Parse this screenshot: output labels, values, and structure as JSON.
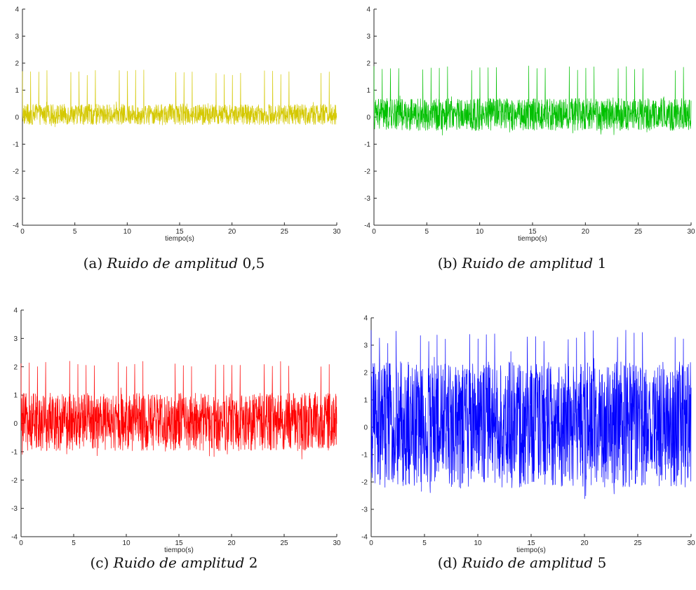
{
  "chart_data": [
    {
      "type": "line",
      "caption": {
        "tag": "(a)",
        "text": "Ruido de amplitud",
        "value": "0,5"
      },
      "xlabel": "tiempo(s)",
      "xlim": [
        0,
        30
      ],
      "ylim": [
        -4,
        4
      ],
      "xticks": [
        "0",
        "5",
        "10",
        "15",
        "20",
        "25",
        "30"
      ],
      "yticks": [
        "4",
        "3",
        "2",
        "1",
        "0",
        "-1",
        "-2",
        "-3",
        "-4"
      ],
      "color": "#d4c800",
      "series": [
        {
          "noise_amplitude": 0.5,
          "baseline": 0.1,
          "spike_peak": 1.65,
          "spike_period_s": 0.77,
          "noise_range": [
            -0.35,
            0.55
          ]
        }
      ]
    },
    {
      "type": "line",
      "caption": {
        "tag": "(b)",
        "text": "Ruido de amplitud",
        "value": "1"
      },
      "xlabel": "tiempo(s)",
      "xlim": [
        0,
        30
      ],
      "ylim": [
        -4,
        4
      ],
      "xticks": [
        "0",
        "5",
        "10",
        "15",
        "20",
        "25",
        "30"
      ],
      "yticks": [
        "4",
        "3",
        "2",
        "1",
        "0",
        "-1",
        "-2",
        "-3",
        "-4"
      ],
      "color": "#00c000",
      "series": [
        {
          "noise_amplitude": 1,
          "baseline": 0.1,
          "spike_peak": 1.8,
          "spike_period_s": 0.77,
          "noise_range": [
            -0.6,
            0.8
          ]
        }
      ]
    },
    {
      "type": "line",
      "caption": {
        "tag": "(c)",
        "text": "Ruido de amplitud",
        "value": "2"
      },
      "xlabel": "tiempo(s)",
      "xlim": [
        0,
        30
      ],
      "ylim": [
        -4,
        4
      ],
      "xticks": [
        "0",
        "5",
        "10",
        "15",
        "20",
        "25",
        "30"
      ],
      "yticks": [
        "4",
        "3",
        "2",
        "1",
        "0",
        "-1",
        "-2",
        "-3",
        "-4"
      ],
      "color": "#ff0000",
      "series": [
        {
          "noise_amplitude": 2,
          "baseline": 0.05,
          "spike_peak": 2.1,
          "spike_period_s": 0.77,
          "noise_range": [
            -1.2,
            1.2
          ]
        }
      ]
    },
    {
      "type": "line",
      "caption": {
        "tag": "(d)",
        "text": "Ruido de amplitud",
        "value": "5"
      },
      "xlabel": "tiempo(s)",
      "xlim": [
        0,
        30
      ],
      "ylim": [
        -4,
        4
      ],
      "xticks": [
        "0",
        "5",
        "10",
        "15",
        "20",
        "25",
        "30"
      ],
      "yticks": [
        "4",
        "3",
        "2",
        "1",
        "0",
        "-1",
        "-2",
        "-3",
        "-4"
      ],
      "color": "#0000ff",
      "series": [
        {
          "noise_amplitude": 5,
          "baseline": 0.1,
          "spike_peak": 3.3,
          "spike_period_s": 0.77,
          "noise_range": [
            -2.6,
            2.8
          ]
        }
      ]
    }
  ]
}
